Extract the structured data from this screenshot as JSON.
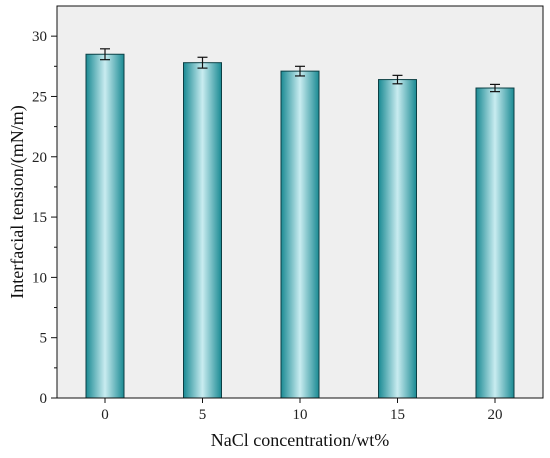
{
  "chart_data": {
    "type": "bar",
    "xlabel": "NaCl concentration/wt%",
    "ylabel": "Interfacial tension/(mN/m)",
    "categories": [
      "0",
      "5",
      "10",
      "15",
      "20"
    ],
    "values": [
      28.5,
      27.8,
      27.1,
      26.4,
      25.7
    ],
    "errors": [
      0.45,
      0.45,
      0.4,
      0.35,
      0.3
    ],
    "ylim": [
      0,
      32.5
    ],
    "yticks": [
      0,
      5,
      10,
      15,
      20,
      25,
      30
    ],
    "grid": false,
    "legend": "none",
    "background_color": "#efefef",
    "bar_colors": {
      "light": "#c9ecf0",
      "dark": "#1a8a93",
      "edge": "#0c3f44"
    }
  }
}
